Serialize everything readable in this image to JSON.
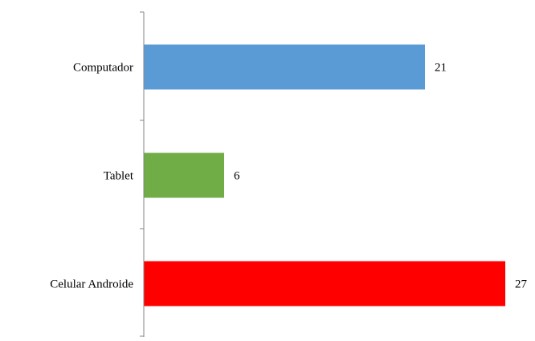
{
  "chart_data": {
    "type": "bar",
    "orientation": "horizontal",
    "categories": [
      "Computador",
      "Tablet",
      "Celular Androide"
    ],
    "values": [
      21,
      6,
      27
    ],
    "colors": [
      "#5b9bd5",
      "#70ad47",
      "#ff0000"
    ],
    "data_labels": [
      "21",
      "6",
      "27"
    ],
    "title": "",
    "xlabel": "",
    "ylabel": "",
    "xlim": [
      0,
      27
    ],
    "grid": false,
    "legend": "none"
  }
}
